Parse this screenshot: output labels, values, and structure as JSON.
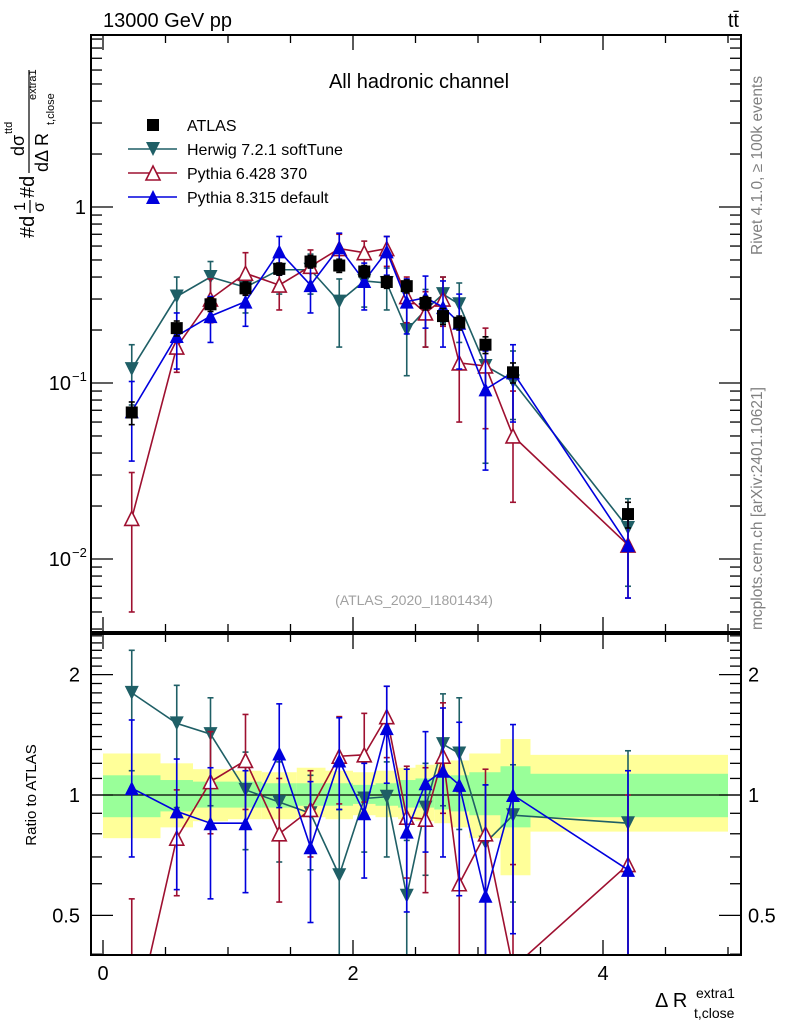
{
  "header": {
    "left_label": "13000 GeV pp",
    "right_label": "tt̄"
  },
  "side_labels": {
    "rivet": "Rivet 4.1.0, ≥ 100k events",
    "mcplots": "mcplots.cern.ch [arXiv:2401.10621]"
  },
  "chart_data": [
    {
      "type": "line",
      "panel": "main",
      "title": "All hadronic channel",
      "analysis_label": "(ATLAS_2020_I1801434)",
      "ylabel": "#d¹/σ#d dσ^{ttd}/dΔ R_{t,close}^{extra1}",
      "ylabel_parts": {
        "prefix": "#d",
        "frac1_num": "1",
        "frac1_den": "σ",
        "mid": "#d",
        "frac2_num": "dσ",
        "frac2_num_sup": "ttd",
        "frac2_den": "dΔ R",
        "frac2_den_sub": "t,close",
        "frac2_den_sup": "extra1"
      },
      "yscale": "log",
      "ylim": [
        0.0038,
        9.5
      ],
      "xlim": [
        -0.1,
        5.1
      ],
      "yticks": [
        {
          "value": 1,
          "label": "1"
        },
        {
          "value": 0.1,
          "label": "10",
          "exp": "−1"
        },
        {
          "value": 0.01,
          "label": "10",
          "exp": "−2"
        }
      ],
      "legend_position": "top-left",
      "x": [
        0.23,
        0.59,
        0.86,
        1.14,
        1.41,
        1.66,
        1.89,
        2.09,
        2.27,
        2.43,
        2.58,
        2.72,
        2.85,
        3.06,
        3.28,
        4.2
      ],
      "series": [
        {
          "name": "ATLAS",
          "color": "#000000",
          "marker": "square-filled",
          "line": false,
          "values": [
            0.068,
            0.205,
            0.28,
            0.345,
            0.445,
            0.49,
            0.465,
            0.43,
            0.375,
            0.355,
            0.285,
            0.24,
            0.22,
            0.165,
            0.115,
            0.018
          ],
          "err_lo": [
            0.01,
            0.02,
            0.025,
            0.03,
            0.035,
            0.04,
            0.04,
            0.035,
            0.03,
            0.03,
            0.025,
            0.025,
            0.02,
            0.018,
            0.015,
            0.003
          ],
          "err_hi": [
            0.01,
            0.02,
            0.025,
            0.03,
            0.035,
            0.04,
            0.04,
            0.035,
            0.03,
            0.03,
            0.025,
            0.025,
            0.02,
            0.018,
            0.015,
            0.003
          ]
        },
        {
          "name": "Herwig 7.2.1 softTune",
          "color": "#1f5f66",
          "marker": "triangle-down-filled",
          "line": true,
          "values": [
            0.12,
            0.31,
            0.4,
            0.35,
            0.44,
            0.44,
            0.29,
            0.38,
            0.37,
            0.2,
            0.26,
            0.32,
            0.28,
            0.125,
            0.102,
            0.015
          ],
          "err_lo": [
            0.045,
            0.12,
            0.12,
            0.1,
            0.12,
            0.12,
            0.13,
            0.11,
            0.11,
            0.09,
            0.1,
            0.1,
            0.11,
            0.09,
            0.04,
            0.008
          ],
          "err_hi": [
            0.045,
            0.09,
            0.09,
            0.08,
            0.1,
            0.1,
            0.1,
            0.08,
            0.08,
            0.07,
            0.08,
            0.08,
            0.09,
            0.04,
            0.05,
            0.007
          ]
        },
        {
          "name": "Pythia 6.428 370",
          "color": "#9e1030",
          "marker": "triangle-up-open",
          "line": true,
          "values": [
            0.017,
            0.16,
            0.3,
            0.42,
            0.36,
            0.46,
            0.58,
            0.55,
            0.58,
            0.31,
            0.25,
            0.3,
            0.13,
            0.125,
            0.05,
            0.012
          ],
          "err_lo": [
            0.012,
            0.045,
            0.08,
            0.1,
            0.1,
            0.1,
            0.13,
            0.12,
            0.12,
            0.09,
            0.09,
            0.09,
            0.07,
            0.07,
            0.029,
            0.006
          ],
          "err_hi": [
            0.014,
            0.05,
            0.09,
            0.13,
            0.12,
            0.11,
            0.12,
            0.09,
            0.1,
            0.09,
            0.08,
            0.1,
            0.08,
            0.08,
            0.04,
            0.007
          ]
        },
        {
          "name": "Pythia 8.315 default",
          "color": "#0000dd",
          "marker": "triangle-up-filled",
          "line": true,
          "values": [
            0.069,
            0.185,
            0.24,
            0.29,
            0.56,
            0.36,
            0.59,
            0.38,
            0.56,
            0.29,
            0.305,
            0.27,
            0.22,
            0.092,
            0.115,
            0.012
          ],
          "err_lo": [
            0.033,
            0.065,
            0.07,
            0.08,
            0.15,
            0.11,
            0.15,
            0.12,
            0.15,
            0.1,
            0.1,
            0.11,
            0.1,
            0.06,
            0.055,
            0.006
          ],
          "err_hi": [
            0.033,
            0.065,
            0.07,
            0.08,
            0.12,
            0.1,
            0.12,
            0.1,
            0.12,
            0.1,
            0.1,
            0.11,
            0.1,
            0.06,
            0.05,
            0.007
          ]
        }
      ]
    },
    {
      "type": "line",
      "panel": "ratio",
      "ylabel": "Ratio to ATLAS",
      "xlabel": "Δ R",
      "xlabel_sub": "t,close",
      "xlabel_sup": "extra1",
      "yscale": "log",
      "ylim": [
        0.4,
        2.53
      ],
      "xlim": [
        -0.1,
        5.1
      ],
      "xticks": [
        {
          "value": 0,
          "label": "0"
        },
        {
          "value": 2,
          "label": "2"
        },
        {
          "value": 4,
          "label": "4"
        }
      ],
      "yticks": [
        {
          "value": 2,
          "label": "2"
        },
        {
          "value": 1,
          "label": "1"
        },
        {
          "value": 0.5,
          "label": "0.5"
        }
      ],
      "bands": {
        "bin_edges": [
          0.0,
          0.46,
          0.72,
          1.0,
          1.27,
          1.55,
          1.78,
          2.0,
          2.18,
          2.36,
          2.5,
          2.65,
          2.78,
          2.93,
          3.18,
          3.42,
          5.0
        ],
        "inner": {
          "color": "#99ff99",
          "lo": [
            0.88,
            0.91,
            0.93,
            0.93,
            0.93,
            0.94,
            0.94,
            0.95,
            0.94,
            0.93,
            0.93,
            0.92,
            0.91,
            0.89,
            0.83,
            0.88
          ],
          "hi": [
            1.12,
            1.09,
            1.08,
            1.08,
            1.07,
            1.07,
            1.07,
            1.06,
            1.07,
            1.09,
            1.1,
            1.11,
            1.12,
            1.14,
            1.18,
            1.13
          ]
        },
        "outer": {
          "color": "#ffff99",
          "lo": [
            0.78,
            0.83,
            0.86,
            0.87,
            0.87,
            0.88,
            0.87,
            0.89,
            0.88,
            0.87,
            0.86,
            0.85,
            0.83,
            0.78,
            0.63,
            0.81
          ],
          "hi": [
            1.27,
            1.2,
            1.16,
            1.15,
            1.14,
            1.17,
            1.15,
            1.14,
            1.15,
            1.17,
            1.19,
            1.2,
            1.22,
            1.27,
            1.38,
            1.26
          ]
        }
      },
      "x": [
        0.23,
        0.59,
        0.86,
        1.14,
        1.41,
        1.66,
        1.89,
        2.09,
        2.27,
        2.43,
        2.58,
        2.72,
        2.85,
        3.06,
        3.28,
        4.2
      ],
      "series": [
        {
          "name": "Herwig 7.2.1 softTune",
          "color": "#1f5f66",
          "marker": "triangle-down-filled",
          "values": [
            1.8,
            1.51,
            1.42,
            1.03,
            0.96,
            0.9,
            0.63,
            0.98,
            0.99,
            0.56,
            0.93,
            1.34,
            1.27,
            0.76,
            0.89,
            0.85
          ],
          "err_lo": [
            0.65,
            0.58,
            0.48,
            0.3,
            0.28,
            0.25,
            0.24,
            0.26,
            0.29,
            0.2,
            0.3,
            0.4,
            0.45,
            0.5,
            0.35,
            0.5
          ],
          "err_hi": [
            0.5,
            0.37,
            0.33,
            0.25,
            0.25,
            0.22,
            0.29,
            0.24,
            0.22,
            0.21,
            0.27,
            0.45,
            0.48,
            0.3,
            0.3,
            0.44
          ]
        },
        {
          "name": "Pythia 6.428 370",
          "color": "#9e1030",
          "marker": "triangle-up-open",
          "values": [
            0.25,
            0.78,
            1.08,
            1.22,
            0.8,
            0.92,
            1.25,
            1.26,
            1.57,
            0.88,
            0.87,
            1.25,
            0.6,
            0.8,
            0.37,
            0.67
          ],
          "err_lo": [
            0.2,
            0.22,
            0.28,
            0.3,
            0.26,
            0.22,
            0.3,
            0.3,
            0.33,
            0.26,
            0.3,
            0.35,
            0.3,
            0.45,
            0.2,
            0.35
          ],
          "err_hi": [
            0.3,
            0.25,
            0.36,
            0.37,
            0.3,
            0.23,
            0.32,
            0.34,
            0.3,
            0.3,
            0.3,
            0.45,
            0.42,
            0.36,
            0.3,
            0.33
          ]
        },
        {
          "name": "Pythia 8.315 default",
          "color": "#0000dd",
          "marker": "triangle-up-filled",
          "values": [
            1.04,
            0.91,
            0.85,
            0.85,
            1.27,
            0.74,
            1.22,
            0.9,
            1.47,
            0.81,
            1.07,
            1.15,
            1.06,
            0.56,
            1.0,
            0.65
          ],
          "err_lo": [
            0.34,
            0.33,
            0.3,
            0.28,
            0.34,
            0.26,
            0.3,
            0.28,
            0.4,
            0.3,
            0.35,
            0.45,
            0.5,
            0.5,
            0.55,
            0.3
          ],
          "err_hi": [
            0.5,
            0.32,
            0.32,
            0.3,
            0.42,
            0.34,
            0.34,
            0.3,
            0.4,
            0.35,
            0.37,
            0.5,
            0.46,
            0.5,
            0.5,
            0.5
          ]
        }
      ]
    }
  ]
}
